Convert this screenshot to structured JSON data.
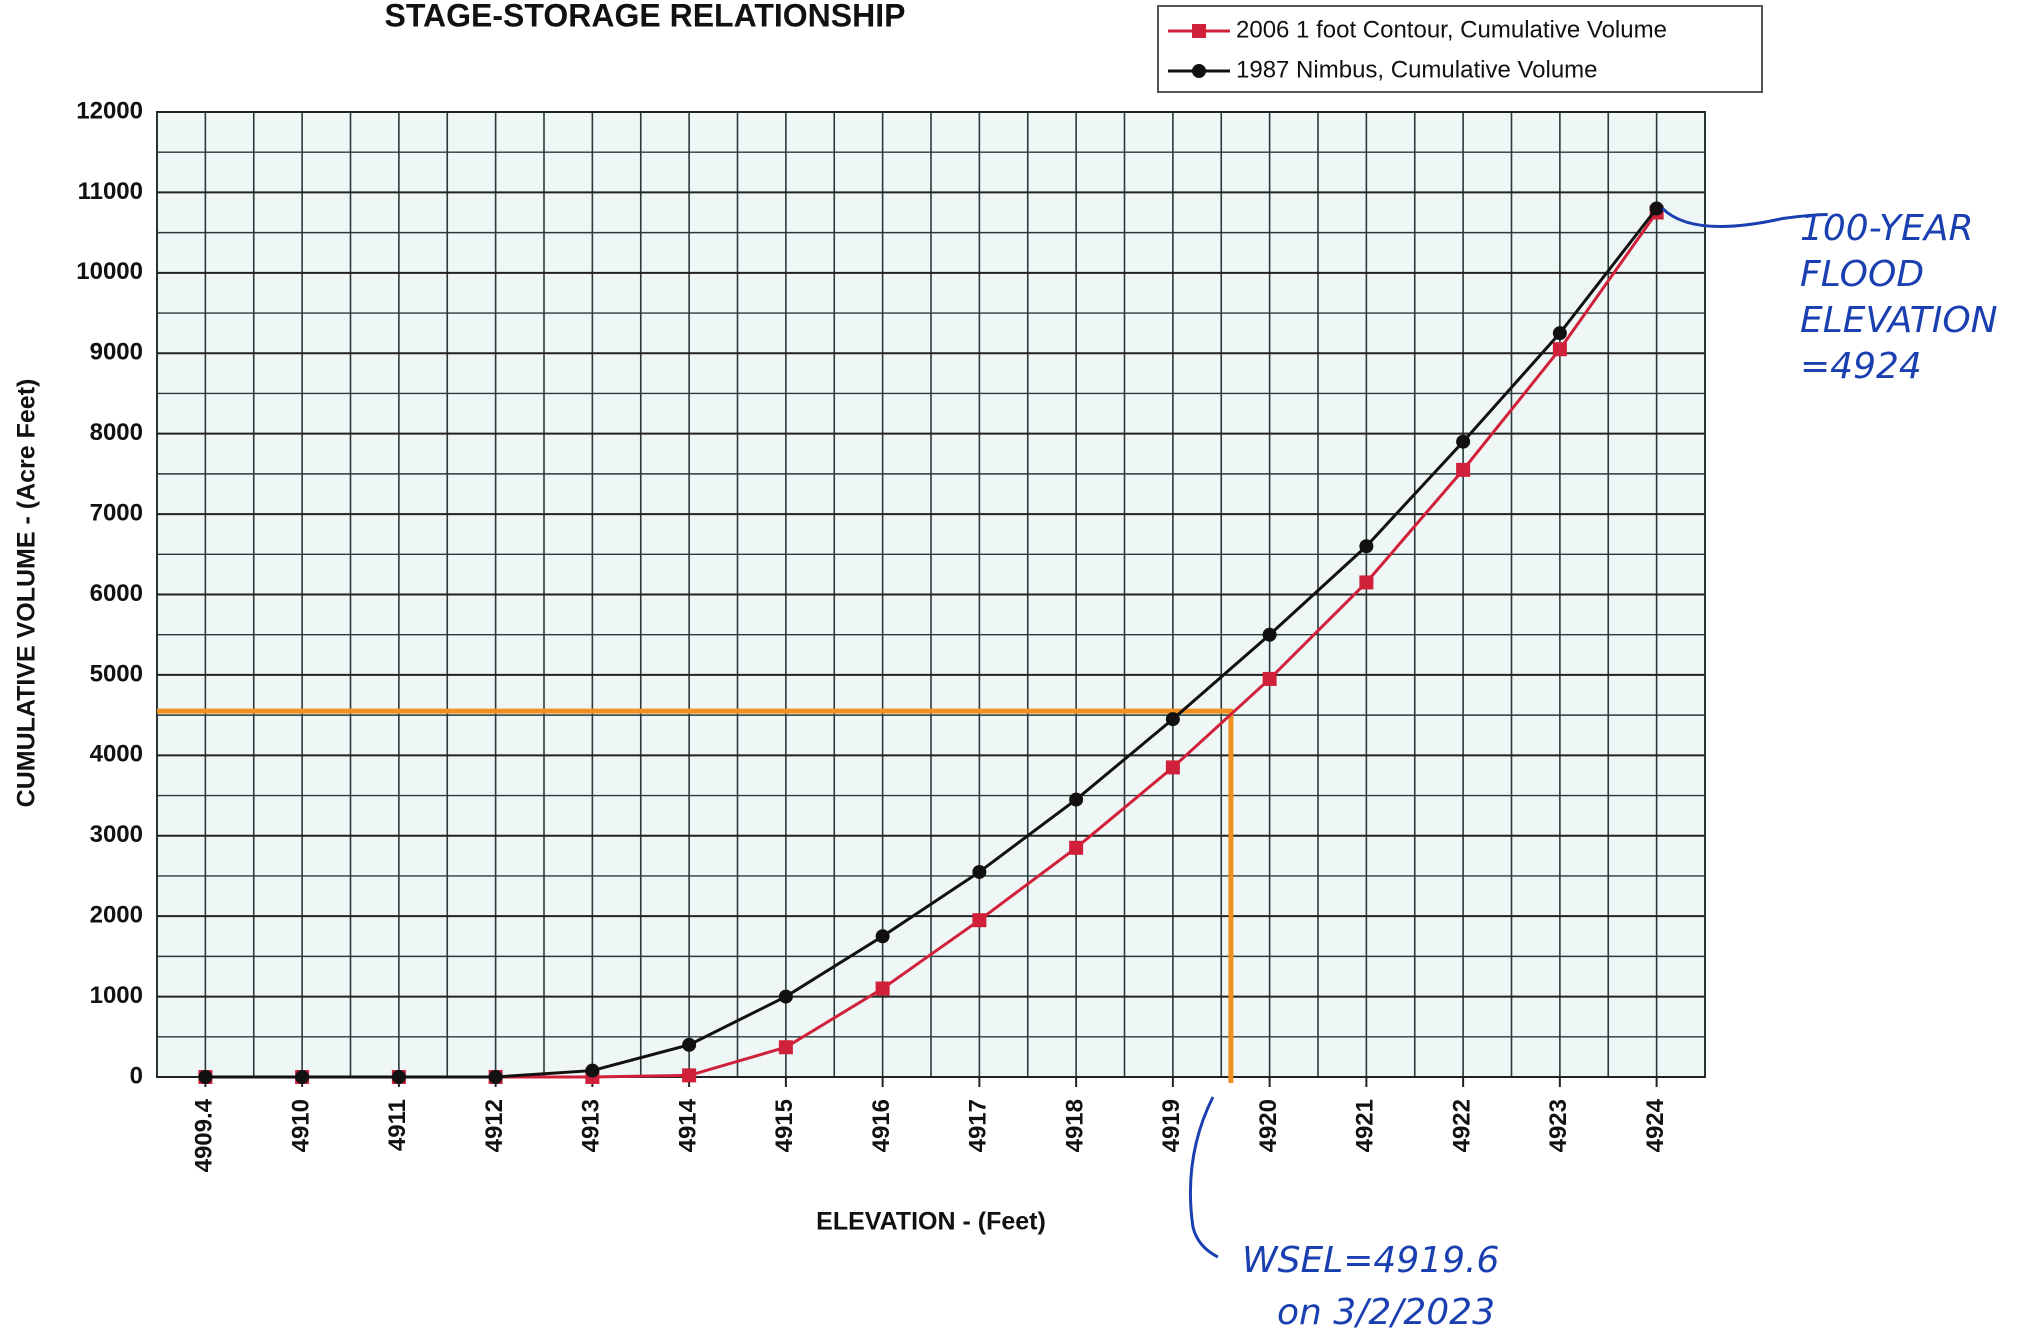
{
  "chart_data": {
    "type": "line",
    "title": "STAGE-STORAGE RELATIONSHIP",
    "xlabel": "ELEVATION - (Feet)",
    "ylabel": "CUMULATIVE VOLUME - (Acre Feet)",
    "categories": [
      4909.4,
      4910,
      4911,
      4912,
      4913,
      4914,
      4915,
      4916,
      4917,
      4918,
      4919,
      4920,
      4921,
      4922,
      4923,
      4924
    ],
    "series": [
      {
        "name": "2006 1 foot Contour, Cumulative Volume",
        "color": "#d0203a",
        "marker": "square",
        "values": [
          0,
          0,
          0,
          0,
          0,
          20,
          370,
          1100,
          1950,
          2850,
          3850,
          4950,
          6150,
          7550,
          9050,
          10750
        ]
      },
      {
        "name": "1987 Nimbus, Cumulative Volume",
        "color": "#111111",
        "marker": "circle",
        "values": [
          0,
          0,
          0,
          0,
          80,
          400,
          1000,
          1750,
          2550,
          3450,
          4450,
          5500,
          6600,
          7900,
          9250,
          10800
        ]
      }
    ],
    "ylim": [
      0,
      12000
    ],
    "yticks": [
      0,
      1000,
      2000,
      3000,
      4000,
      5000,
      6000,
      7000,
      8000,
      9000,
      10000,
      11000,
      12000
    ],
    "grid": true,
    "legend": "top-right",
    "guide": {
      "x": 4919.6,
      "y": 4550,
      "color": "#f0901e"
    },
    "annotations": [
      {
        "lines": [
          "100-YEAR",
          "FLOOD",
          "ELEVATION",
          "=4924"
        ],
        "color": "#1a3fb0"
      },
      {
        "lines": [
          "WSEL=4919.6",
          "on 3/2/2023"
        ],
        "color": "#1a3fb0"
      }
    ]
  }
}
